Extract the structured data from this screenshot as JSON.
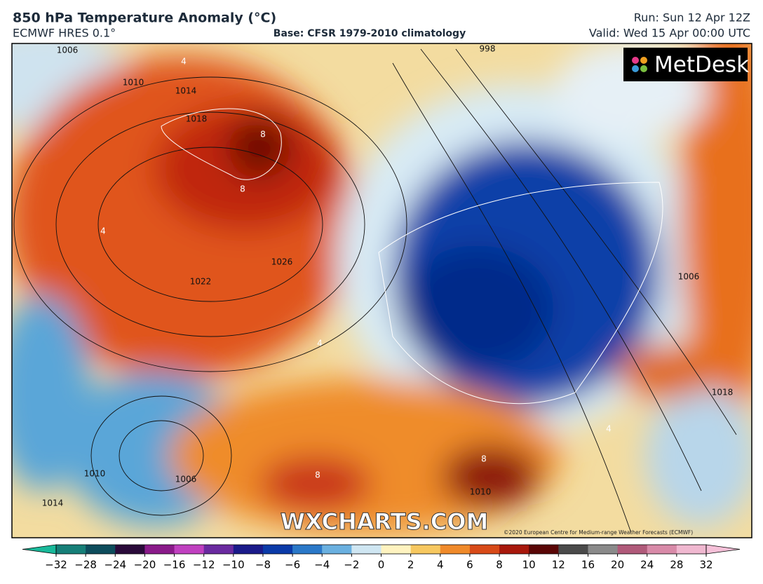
{
  "header": {
    "title": "850 hPa Temperature Anomaly (°C)",
    "model": "ECMWF HRES 0.1°",
    "base": "Base: CFSR 1979-2010 climatology",
    "run": "Run: Sun 12 Apr 12Z",
    "valid": "Valid: Wed 15 Apr 00:00 UTC"
  },
  "map": {
    "logo": "MetDesk",
    "watermark": "WXCHARTS.COM",
    "copyright": "©2020 European Centre for Medium-range Weather Forecasts (ECMWF)",
    "contour_labels": [
      "1006",
      "1010",
      "1014",
      "1018",
      "1022",
      "1026",
      "998",
      "1006",
      "1010",
      "1014",
      "1006",
      "1010",
      "1018",
      "8",
      "8",
      "4",
      "4",
      "8",
      "8",
      "4",
      "4"
    ]
  },
  "colorbar": {
    "ticks": [
      {
        "value": -32,
        "label": "−32"
      },
      {
        "value": -28,
        "label": "−28"
      },
      {
        "value": -24,
        "label": "−24"
      },
      {
        "value": -20,
        "label": "−20"
      },
      {
        "value": -16,
        "label": "−16"
      },
      {
        "value": -12,
        "label": "−12"
      },
      {
        "value": -10,
        "label": "−10"
      },
      {
        "value": -8,
        "label": "−8"
      },
      {
        "value": -6,
        "label": "−6"
      },
      {
        "value": -4,
        "label": "−4"
      },
      {
        "value": -2,
        "label": "−2"
      },
      0,
      2,
      4,
      6,
      8,
      10,
      12,
      16,
      20,
      24,
      28,
      32
    ],
    "colors": [
      "#167f78",
      "#0d4c5c",
      "#2a0a3a",
      "#8a1a8a",
      "#c040c0",
      "#6a2aa0",
      "#1a1a8a",
      "#0a3aa8",
      "#2a78c8",
      "#6ab0e0",
      "#cfe6f2",
      "#fff3c0",
      "#f7c860",
      "#f08a2a",
      "#d84a18",
      "#a8180c",
      "#5a0606",
      "#4a4a4a",
      "#8a8a8a",
      "#b05a7a",
      "#d88aa8",
      "#f0b8d0"
    ],
    "under_color": "#19b99a",
    "over_color": "#f5c0d8"
  }
}
